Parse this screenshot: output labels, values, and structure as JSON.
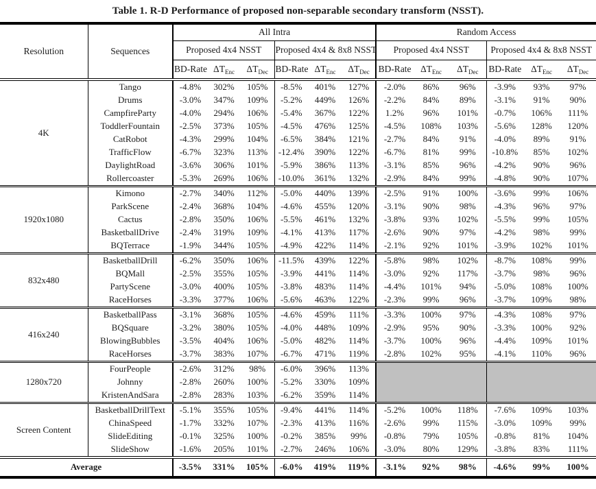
{
  "title": "Table 1. R-D Performance of proposed non-separable secondary transform (NSST).",
  "colors": {
    "shaded_cell": "#c0c0c0",
    "border": "#000000",
    "background": "#ffffff"
  },
  "table": {
    "corner_headers": {
      "resolution": "Resolution",
      "sequences": "Sequences"
    },
    "top_groups": [
      {
        "label": "All Intra"
      },
      {
        "label": "Random Access"
      }
    ],
    "sub_groups": [
      {
        "label": "Proposed 4x4 NSST"
      },
      {
        "label": "Proposed 4x4 & 8x8 NSST"
      },
      {
        "label": "Proposed 4x4 NSST"
      },
      {
        "label": "Proposed 4x4 & 8x8 NSST"
      }
    ],
    "metric_headers": [
      {
        "main": "BD-Rate",
        "sub": ""
      },
      {
        "main": "ΔT",
        "sub": "Enc"
      },
      {
        "main": "ΔT",
        "sub": "Dec"
      }
    ]
  },
  "groups": [
    {
      "resolution": "4K",
      "rows": [
        {
          "sequence": "Tango",
          "values": [
            "-4.8%",
            "302%",
            "105%",
            "-8.5%",
            "401%",
            "127%",
            "-2.0%",
            "86%",
            "96%",
            "-3.9%",
            "93%",
            "97%"
          ]
        },
        {
          "sequence": "Drums",
          "values": [
            "-3.0%",
            "347%",
            "109%",
            "-5.2%",
            "449%",
            "126%",
            "-2.2%",
            "84%",
            "89%",
            "-3.1%",
            "91%",
            "90%"
          ]
        },
        {
          "sequence": "CampfireParty",
          "values": [
            "-4.0%",
            "294%",
            "106%",
            "-5.4%",
            "367%",
            "122%",
            "1.2%",
            "96%",
            "101%",
            "-0.7%",
            "106%",
            "111%"
          ]
        },
        {
          "sequence": "ToddlerFountain",
          "values": [
            "-2.5%",
            "373%",
            "105%",
            "-4.5%",
            "476%",
            "125%",
            "-4.5%",
            "108%",
            "103%",
            "-5.6%",
            "128%",
            "120%"
          ]
        },
        {
          "sequence": "CatRobot",
          "values": [
            "-4.3%",
            "299%",
            "104%",
            "-6.5%",
            "384%",
            "121%",
            "-2.7%",
            "84%",
            "91%",
            "-4.0%",
            "89%",
            "91%"
          ]
        },
        {
          "sequence": "TrafficFlow",
          "values": [
            "-6.7%",
            "323%",
            "113%",
            "-12.4%",
            "390%",
            "122%",
            "-6.7%",
            "81%",
            "99%",
            "-10.8%",
            "85%",
            "102%"
          ]
        },
        {
          "sequence": "DaylightRoad",
          "values": [
            "-3.6%",
            "306%",
            "101%",
            "-5.9%",
            "386%",
            "113%",
            "-3.1%",
            "85%",
            "96%",
            "-4.2%",
            "90%",
            "96%"
          ]
        },
        {
          "sequence": "Rollercoaster",
          "values": [
            "-5.3%",
            "269%",
            "106%",
            "-10.0%",
            "361%",
            "132%",
            "-2.9%",
            "84%",
            "99%",
            "-4.8%",
            "90%",
            "107%"
          ]
        }
      ]
    },
    {
      "resolution": "1920x1080",
      "rows": [
        {
          "sequence": "Kimono",
          "values": [
            "-2.7%",
            "340%",
            "112%",
            "-5.0%",
            "440%",
            "139%",
            "-2.5%",
            "91%",
            "100%",
            "-3.6%",
            "99%",
            "106%"
          ]
        },
        {
          "sequence": "ParkScene",
          "values": [
            "-2.4%",
            "368%",
            "104%",
            "-4.6%",
            "455%",
            "120%",
            "-3.1%",
            "90%",
            "98%",
            "-4.3%",
            "96%",
            "97%"
          ]
        },
        {
          "sequence": "Cactus",
          "values": [
            "-2.8%",
            "350%",
            "106%",
            "-5.5%",
            "461%",
            "132%",
            "-3.8%",
            "93%",
            "102%",
            "-5.5%",
            "99%",
            "105%"
          ]
        },
        {
          "sequence": "BasketballDrive",
          "values": [
            "-2.4%",
            "319%",
            "109%",
            "-4.1%",
            "413%",
            "117%",
            "-2.6%",
            "90%",
            "97%",
            "-4.2%",
            "98%",
            "99%"
          ]
        },
        {
          "sequence": "BQTerrace",
          "values": [
            "-1.9%",
            "344%",
            "105%",
            "-4.9%",
            "422%",
            "114%",
            "-2.1%",
            "92%",
            "101%",
            "-3.9%",
            "102%",
            "101%"
          ]
        }
      ]
    },
    {
      "resolution": "832x480",
      "rows": [
        {
          "sequence": "BasketballDrill",
          "values": [
            "-6.2%",
            "350%",
            "106%",
            "-11.5%",
            "439%",
            "122%",
            "-5.8%",
            "98%",
            "102%",
            "-8.7%",
            "108%",
            "99%"
          ]
        },
        {
          "sequence": "BQMall",
          "values": [
            "-2.5%",
            "355%",
            "105%",
            "-3.9%",
            "441%",
            "114%",
            "-3.0%",
            "92%",
            "117%",
            "-3.7%",
            "98%",
            "96%"
          ]
        },
        {
          "sequence": "PartyScene",
          "values": [
            "-3.0%",
            "400%",
            "105%",
            "-3.8%",
            "483%",
            "114%",
            "-4.4%",
            "101%",
            "94%",
            "-5.0%",
            "108%",
            "100%"
          ]
        },
        {
          "sequence": "RaceHorses",
          "values": [
            "-3.3%",
            "377%",
            "106%",
            "-5.6%",
            "463%",
            "122%",
            "-2.3%",
            "99%",
            "96%",
            "-3.7%",
            "109%",
            "98%"
          ]
        }
      ]
    },
    {
      "resolution": "416x240",
      "rows": [
        {
          "sequence": "BasketballPass",
          "values": [
            "-3.1%",
            "368%",
            "105%",
            "-4.6%",
            "459%",
            "111%",
            "-3.3%",
            "100%",
            "97%",
            "-4.3%",
            "108%",
            "97%"
          ]
        },
        {
          "sequence": "BQSquare",
          "values": [
            "-3.2%",
            "380%",
            "105%",
            "-4.0%",
            "448%",
            "109%",
            "-2.9%",
            "95%",
            "90%",
            "-3.3%",
            "100%",
            "92%"
          ]
        },
        {
          "sequence": "BlowingBubbles",
          "values": [
            "-3.5%",
            "404%",
            "106%",
            "-5.0%",
            "482%",
            "114%",
            "-3.7%",
            "100%",
            "96%",
            "-4.4%",
            "109%",
            "101%"
          ]
        },
        {
          "sequence": "RaceHorses",
          "values": [
            "-3.7%",
            "383%",
            "107%",
            "-6.7%",
            "471%",
            "119%",
            "-2.8%",
            "102%",
            "95%",
            "-4.1%",
            "110%",
            "96%"
          ]
        }
      ]
    },
    {
      "resolution": "1280x720",
      "random_access_empty": true,
      "rows": [
        {
          "sequence": "FourPeople",
          "values": [
            "-2.6%",
            "312%",
            "98%",
            "-6.0%",
            "396%",
            "113%"
          ]
        },
        {
          "sequence": "Johnny",
          "values": [
            "-2.8%",
            "260%",
            "100%",
            "-5.2%",
            "330%",
            "109%"
          ]
        },
        {
          "sequence": "KristenAndSara",
          "values": [
            "-2.8%",
            "283%",
            "103%",
            "-6.2%",
            "359%",
            "114%"
          ]
        }
      ]
    },
    {
      "resolution": "Screen Content",
      "rows": [
        {
          "sequence": "BasketballDrillText",
          "values": [
            "-5.1%",
            "355%",
            "105%",
            "-9.4%",
            "441%",
            "114%",
            "-5.2%",
            "100%",
            "118%",
            "-7.6%",
            "109%",
            "103%"
          ]
        },
        {
          "sequence": "ChinaSpeed",
          "values": [
            "-1.7%",
            "332%",
            "107%",
            "-2.3%",
            "413%",
            "116%",
            "-2.6%",
            "99%",
            "115%",
            "-3.0%",
            "109%",
            "99%"
          ]
        },
        {
          "sequence": "SlideEditing",
          "values": [
            "-0.1%",
            "325%",
            "100%",
            "-0.2%",
            "385%",
            "99%",
            "-0.8%",
            "79%",
            "105%",
            "-0.8%",
            "81%",
            "104%"
          ]
        },
        {
          "sequence": "SlideShow",
          "values": [
            "-1.6%",
            "205%",
            "101%",
            "-2.7%",
            "246%",
            "106%",
            "-3.0%",
            "80%",
            "129%",
            "-3.8%",
            "83%",
            "111%"
          ]
        }
      ]
    }
  ],
  "average": {
    "label": "Average",
    "values": [
      "-3.5%",
      "331%",
      "105%",
      "-6.0%",
      "419%",
      "119%",
      "-3.1%",
      "92%",
      "98%",
      "-4.6%",
      "99%",
      "100%"
    ]
  }
}
